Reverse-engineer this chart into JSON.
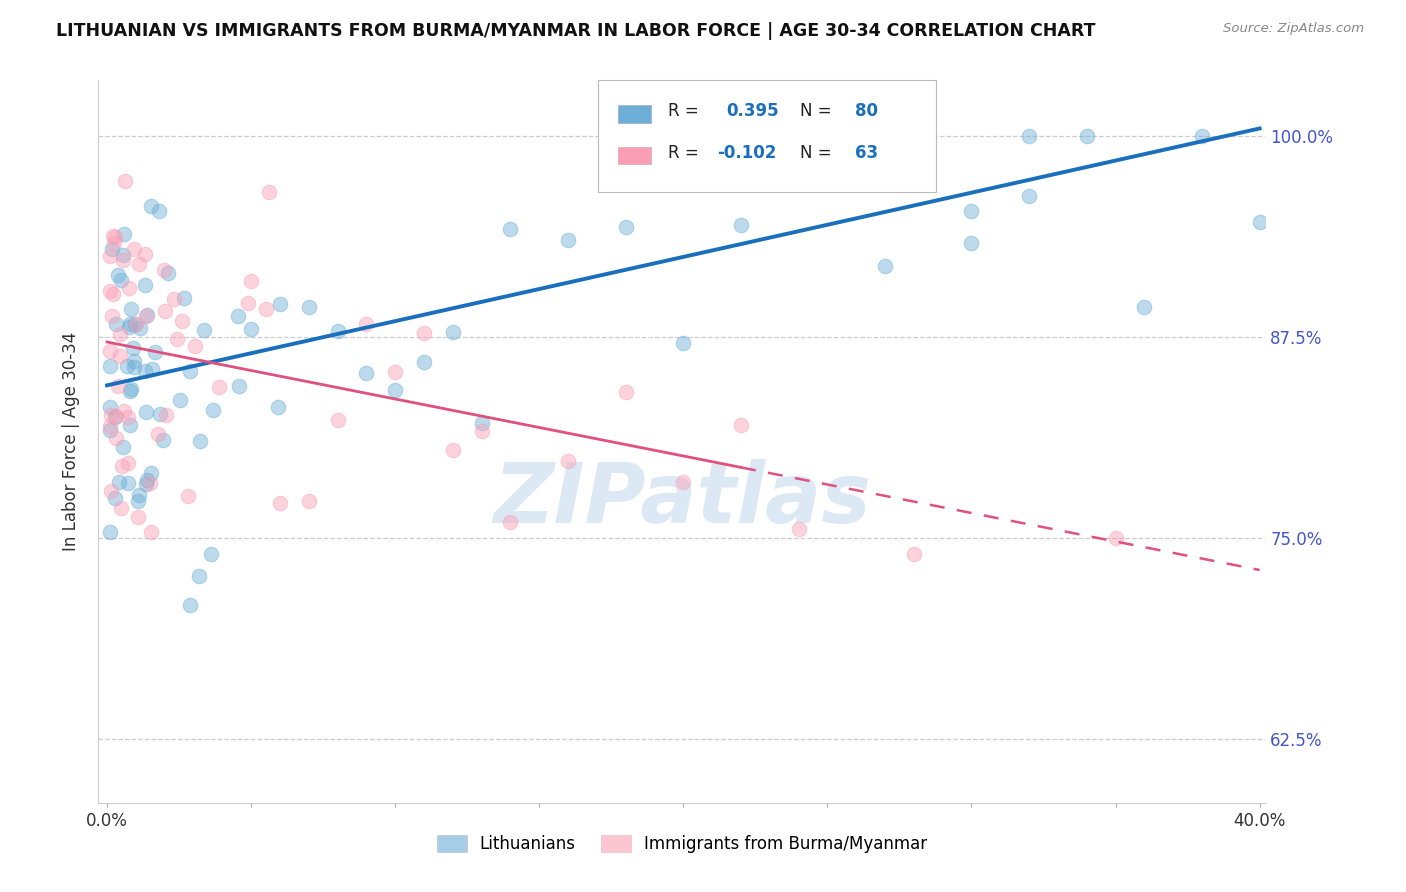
{
  "title": "LITHUANIAN VS IMMIGRANTS FROM BURMA/MYANMAR IN LABOR FORCE | AGE 30-34 CORRELATION CHART",
  "source": "Source: ZipAtlas.com",
  "ylabel": "In Labor Force | Age 30-34",
  "xlim": [
    -0.003,
    0.402
  ],
  "ylim": [
    0.585,
    1.035
  ],
  "yticks": [
    1.0,
    0.875,
    0.75,
    0.625
  ],
  "ytick_labels": [
    "100.0%",
    "87.5%",
    "75.0%",
    "62.5%"
  ],
  "xticks": [
    0.0,
    0.05,
    0.1,
    0.15,
    0.2,
    0.25,
    0.3,
    0.35,
    0.4
  ],
  "xtick_labels": [
    "0.0%",
    "",
    "",
    "",
    "",
    "",
    "",
    "",
    "40.0%"
  ],
  "legend_label1": "Lithuanians",
  "legend_label2": "Immigrants from Burma/Myanmar",
  "R1": 0.395,
  "N1": 80,
  "R2": -0.102,
  "N2": 63,
  "color1": "#6baed6",
  "color2": "#fa9fb5",
  "trend1_color": "#1a6fbd",
  "trend2_color": "#e05080",
  "trend1_x0": 0.0,
  "trend1_y0": 0.845,
  "trend1_x1": 0.4,
  "trend1_y1": 1.005,
  "trend2_x0": 0.0,
  "trend2_y0": 0.872,
  "trend2_x1": 0.4,
  "trend2_y1": 0.73,
  "trend2_solid_end": 0.22,
  "watermark_text": "ZIPatlas",
  "watermark_color": "#a8c8e8",
  "watermark_alpha": 0.4
}
